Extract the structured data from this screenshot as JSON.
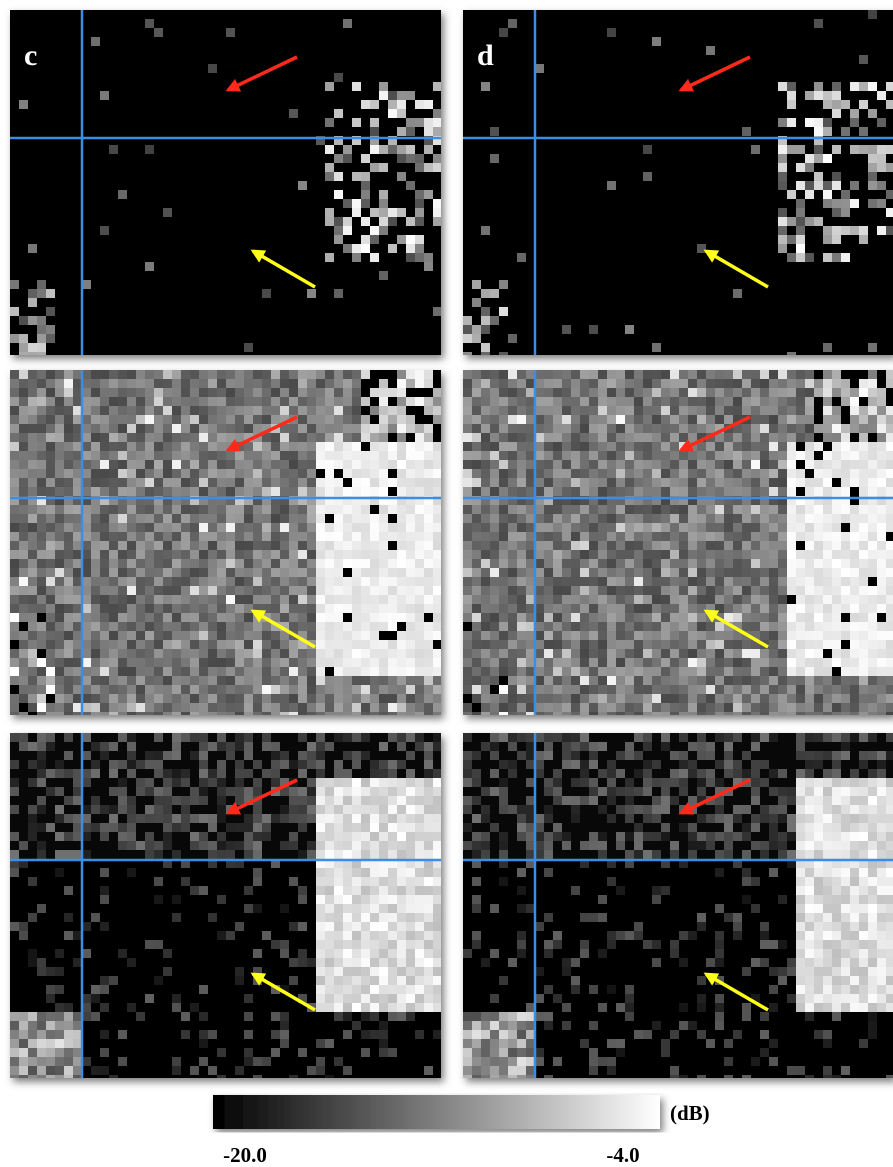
{
  "panels": [
    {
      "label": "c"
    },
    {
      "label": "d"
    }
  ],
  "colorbar": {
    "unit": "(dB)",
    "lim": [
      -20,
      -4
    ],
    "ticks": [
      {
        "value": -20,
        "label": "-20.0"
      },
      {
        "value": -4,
        "label": "-4.0"
      }
    ]
  }
}
